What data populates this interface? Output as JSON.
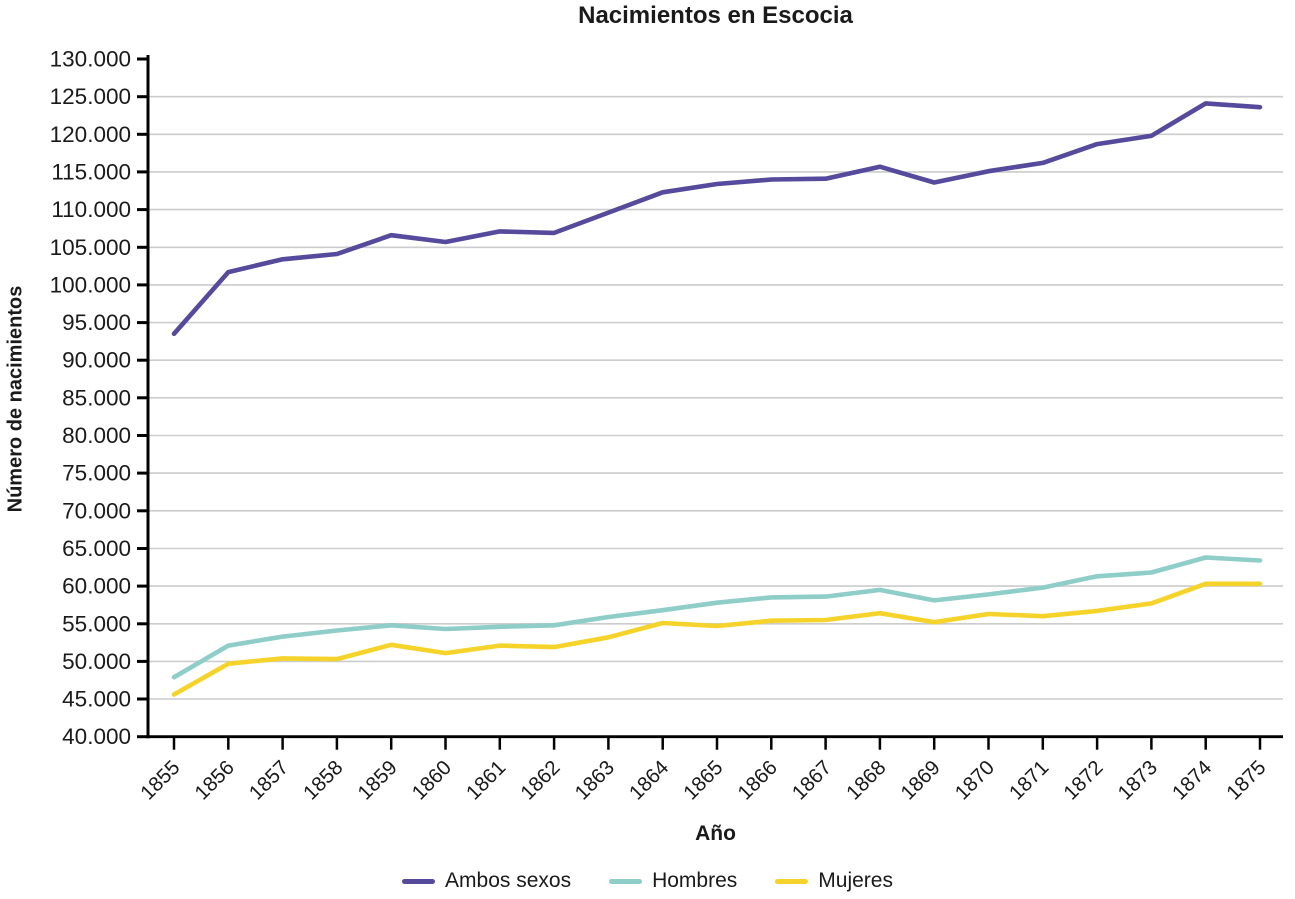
{
  "chart_data": {
    "type": "line",
    "title": "Nacimientos en Escocia",
    "xlabel": "Año",
    "ylabel": "Número de nacimientos",
    "categories": [
      "1855",
      "1856",
      "1857",
      "1858",
      "1859",
      "1860",
      "1861",
      "1862",
      "1863",
      "1864",
      "1865",
      "1866",
      "1867",
      "1868",
      "1869",
      "1870",
      "1871",
      "1872",
      "1873",
      "1874",
      "1875"
    ],
    "series": [
      {
        "name": "Ambos sexos",
        "color": "#554A9B",
        "values": [
          93500,
          101700,
          103400,
          104100,
          106600,
          105700,
          107100,
          106900,
          109600,
          112300,
          113400,
          114000,
          114100,
          115700,
          113600,
          115100,
          116200,
          118700,
          119800,
          124100,
          123600
        ]
      },
      {
        "name": "Hombres",
        "color": "#8FCDC9",
        "values": [
          47900,
          52100,
          53300,
          54100,
          54800,
          54300,
          54600,
          54800,
          55900,
          56800,
          57800,
          58500,
          58600,
          59500,
          58100,
          58900,
          59800,
          61300,
          61800,
          63800,
          63400
        ]
      },
      {
        "name": "Mujeres",
        "color": "#F6D32B",
        "values": [
          45600,
          49700,
          50400,
          50300,
          52200,
          51100,
          52100,
          51900,
          53200,
          55100,
          54700,
          55400,
          55500,
          56400,
          55200,
          56300,
          56000,
          56700,
          57700,
          60300,
          60300
        ]
      }
    ],
    "ylim": [
      40000,
      130000
    ],
    "y_tick_step": 5000,
    "y_tick_labels": [
      "40.000",
      "45.000",
      "50.000",
      "55.000",
      "60.000",
      "65.000",
      "70.000",
      "75.000",
      "80.000",
      "85.000",
      "90.000",
      "95.000",
      "100.000",
      "105.000",
      "110.000",
      "115.000",
      "120.000",
      "125.000",
      "130.000"
    ],
    "grid": "horizontal",
    "legend_position": "bottom",
    "colors": {
      "axis": "#000000",
      "gridline": "#cccccc",
      "text": "#1a1a1a"
    }
  }
}
